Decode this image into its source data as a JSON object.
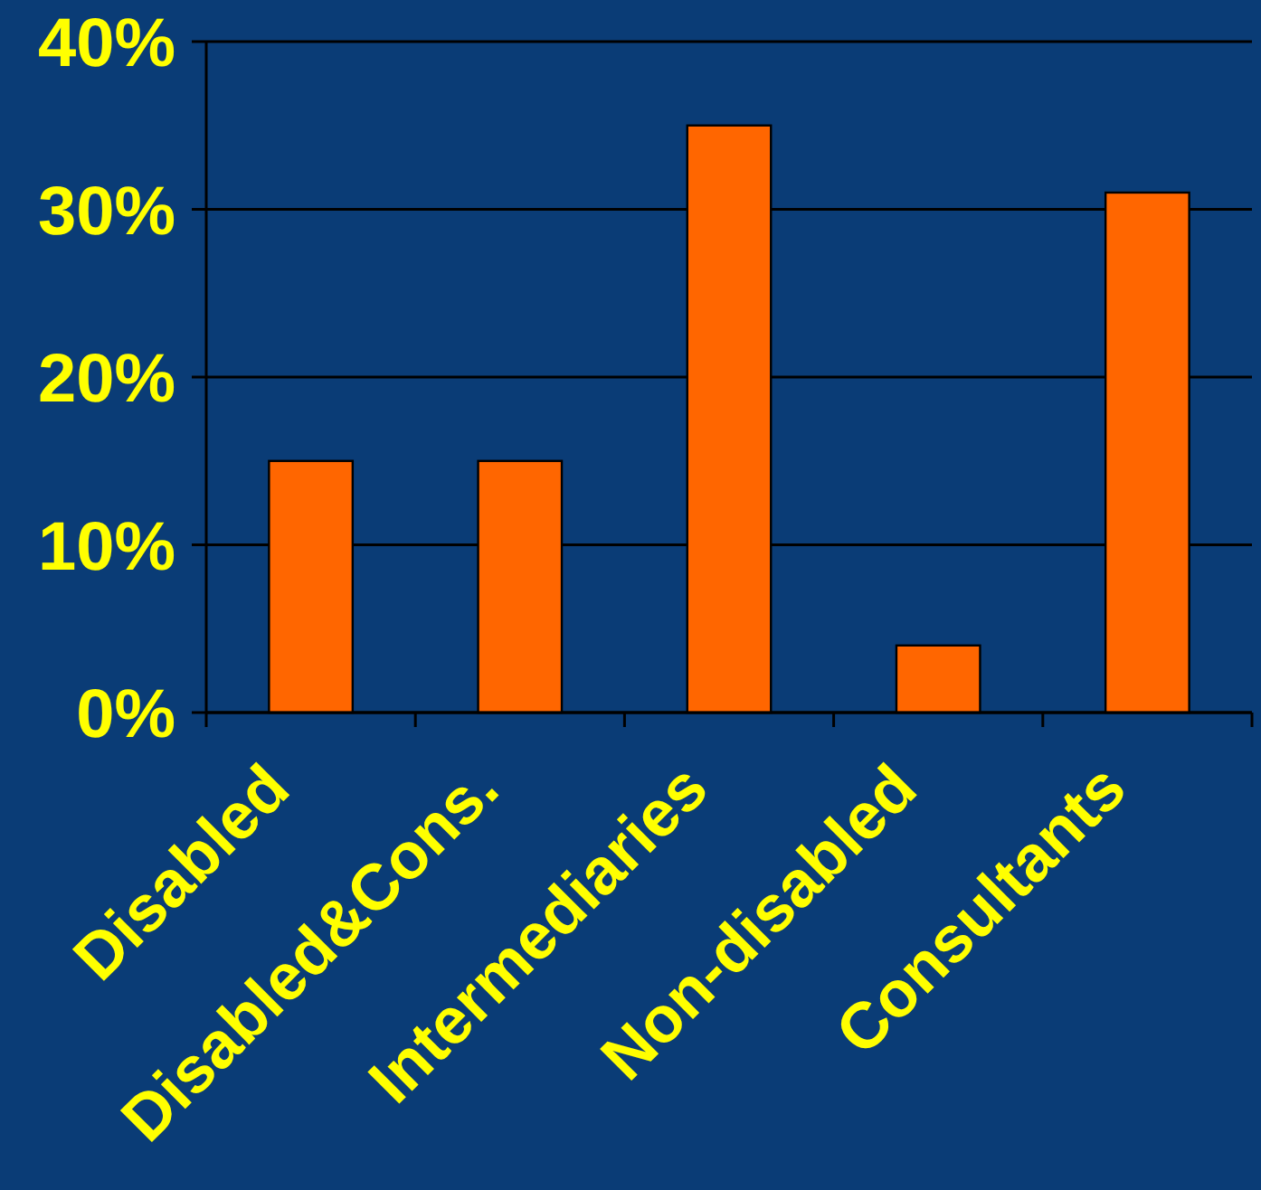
{
  "chart_data": {
    "type": "bar",
    "categories": [
      "Disabled",
      "Disabled&Cons.",
      "Intermediaries",
      "Non-disabled",
      "Consultants"
    ],
    "values": [
      15,
      15,
      35,
      4,
      31
    ],
    "color": "#ff6600",
    "ylim": [
      0,
      40
    ],
    "yticks": [
      {
        "value": 0,
        "label": "0%"
      },
      {
        "value": 10,
        "label": "10%"
      },
      {
        "value": 20,
        "label": "20%"
      },
      {
        "value": 30,
        "label": "30%"
      },
      {
        "value": 40,
        "label": "40%"
      }
    ],
    "grid": "y"
  }
}
